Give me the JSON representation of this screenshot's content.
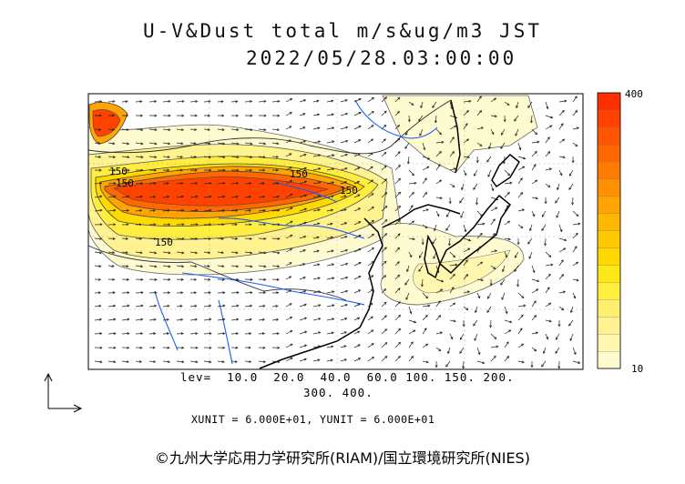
{
  "title_line1": "U-V&Dust total m/s&ug/m3 JST",
  "title_line2": "2022/05/28.03:00:00",
  "colorbar": {
    "max_label": "400",
    "min_label": "10",
    "colors": [
      "#fffbd0",
      "#fff7b0",
      "#fff290",
      "#fff070",
      "#ffee40",
      "#ffe818",
      "#ffd800",
      "#ffc800",
      "#ffb800",
      "#ffa400",
      "#ff9000",
      "#ff7c00",
      "#ff6800",
      "#ff5400",
      "#ff4200",
      "#ff3000"
    ]
  },
  "contour_labels": [
    "150",
    "150",
    "150",
    "150",
    "150"
  ],
  "levels_line1": "lev=  10.0  20.0  40.0  60.0 100. 150. 200.",
  "levels_line2": "300. 400.",
  "unit_text": "XUNIT = 6.000E+01, YUNIT = 6.000E+01",
  "credit": "©九州大学応用力学研究所(RIAM)/国立環境研究所(NIES)"
}
